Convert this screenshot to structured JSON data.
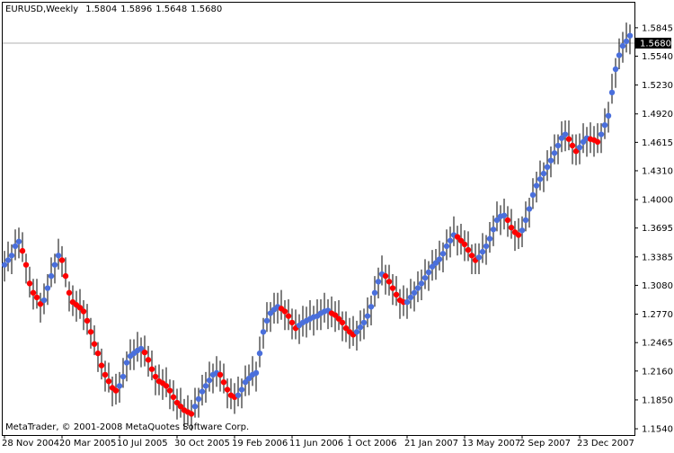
{
  "chart_data": {
    "type": "ohlc-dots",
    "title": "EURUSD,Weekly",
    "ohlc": [
      1.5804,
      1.5896,
      1.5648,
      {
        "value": 1.568,
        "label": "1.5680"
      }
    ],
    "footer": "MetaTrader, © 2001-2008 MetaQuotes Software Corp.",
    "last": {
      "value": 1.568,
      "label": "1.5680"
    },
    "up_color": "#4a6fdc",
    "down_color": "#ff0000",
    "bar_color": "#000000",
    "ylim": [
      1.1473,
      1.6114
    ],
    "yticks": [
      1.5845,
      {
        "value": 1.554,
        "label": "1.5540"
      },
      {
        "value": 1.523,
        "label": "1.5230"
      },
      {
        "value": 1.492,
        "label": "1.4920"
      },
      1.4615,
      {
        "value": 1.431,
        "label": "1.4310"
      },
      {
        "value": 1.4,
        "label": "1.4000"
      },
      1.3695,
      1.3385,
      {
        "value": 1.308,
        "label": "1.3080"
      },
      {
        "value": 1.277,
        "label": "1.2770"
      },
      1.2465,
      {
        "value": 1.216,
        "label": "1.2160"
      },
      {
        "value": 1.185,
        "label": "1.1850"
      },
      {
        "value": 1.154,
        "label": "1.1540"
      }
    ],
    "categories": [
      "28 Nov 2004",
      null,
      null,
      null,
      null,
      null,
      null,
      null,
      null,
      null,
      null,
      null,
      null,
      null,
      null,
      null,
      "20 Mar 2005",
      null,
      null,
      null,
      null,
      null,
      null,
      null,
      null,
      null,
      null,
      null,
      null,
      null,
      null,
      null,
      "10 Jul 2005",
      null,
      null,
      null,
      null,
      null,
      null,
      null,
      null,
      null,
      null,
      null,
      null,
      null,
      null,
      null,
      "30 Oct 2005",
      null,
      null,
      null,
      null,
      null,
      null,
      null,
      null,
      null,
      null,
      null,
      null,
      null,
      null,
      null,
      "19 Feb 2006",
      null,
      null,
      null,
      null,
      null,
      null,
      null,
      null,
      null,
      null,
      null,
      null,
      null,
      null,
      null,
      "11 Jun 2006",
      null,
      null,
      null,
      null,
      null,
      null,
      null,
      null,
      null,
      null,
      null,
      null,
      null,
      null,
      null,
      "1 Oct 2006",
      null,
      null,
      null,
      null,
      null,
      null,
      null,
      null,
      null,
      null,
      null,
      null,
      null,
      null,
      null,
      "21 Jan 2007",
      null,
      null,
      null,
      null,
      null,
      null,
      null,
      null,
      null,
      null,
      null,
      null,
      null,
      null,
      null,
      "13 May 2007",
      null,
      null,
      null,
      null,
      null,
      null,
      null,
      null,
      null,
      null,
      null,
      null,
      null,
      null,
      null,
      "2 Sep 2007",
      null,
      null,
      null,
      null,
      null,
      null,
      null,
      null,
      null,
      null,
      null,
      null,
      null,
      null,
      null,
      "23 Dec 2007",
      null,
      null,
      null,
      null,
      null,
      null,
      null,
      null,
      null,
      null,
      null,
      null,
      null,
      null
    ],
    "values": [
      1.33,
      1.335,
      1.34,
      1.35,
      1.355,
      1.345,
      1.33,
      1.31,
      1.3,
      1.295,
      1.288,
      1.292,
      1.305,
      1.318,
      1.33,
      1.34,
      1.335,
      1.318,
      1.3,
      1.29,
      1.287,
      1.284,
      1.28,
      1.27,
      1.258,
      1.245,
      1.235,
      1.222,
      1.212,
      1.205,
      1.198,
      1.195,
      1.2,
      1.21,
      1.225,
      1.232,
      1.235,
      1.238,
      1.24,
      1.236,
      1.228,
      1.218,
      1.21,
      1.205,
      1.203,
      1.2,
      1.195,
      1.188,
      1.182,
      1.178,
      1.174,
      1.172,
      1.17,
      1.178,
      1.186,
      1.194,
      1.2,
      1.206,
      1.212,
      1.214,
      1.212,
      1.204,
      1.196,
      1.19,
      1.188,
      1.19,
      1.196,
      1.204,
      1.208,
      1.212,
      1.214,
      1.235,
      1.258,
      1.27,
      1.278,
      1.282,
      1.285,
      1.283,
      1.28,
      1.275,
      1.268,
      1.262,
      1.265,
      1.268,
      1.27,
      1.272,
      1.274,
      1.275,
      1.278,
      1.28,
      1.281,
      1.278,
      1.276,
      1.272,
      1.268,
      1.262,
      1.258,
      1.255,
      1.258,
      1.263,
      1.268,
      1.275,
      1.285,
      1.3,
      1.312,
      1.32,
      1.318,
      1.312,
      1.305,
      1.298,
      1.292,
      1.29,
      1.29,
      1.295,
      1.3,
      1.305,
      1.31,
      1.316,
      1.322,
      1.328,
      1.332,
      1.336,
      1.342,
      1.35,
      1.356,
      1.362,
      1.36,
      1.356,
      1.352,
      1.346,
      1.34,
      1.335,
      1.338,
      1.344,
      1.35,
      1.358,
      1.368,
      1.378,
      1.382,
      1.383,
      1.378,
      1.37,
      1.365,
      1.362,
      1.367,
      1.378,
      1.39,
      1.405,
      1.415,
      1.422,
      1.428,
      1.435,
      1.442,
      1.45,
      1.458,
      1.466,
      1.47,
      1.465,
      1.458,
      1.452,
      1.456,
      1.462,
      1.466,
      1.465,
      1.464,
      1.462,
      1.47,
      1.48,
      1.49,
      1.515,
      1.54,
      1.555,
      1.565,
      1.57,
      1.576
    ],
    "high": [
      1.345,
      1.355,
      1.352,
      1.368,
      1.37,
      1.365,
      1.342,
      1.328,
      1.315,
      1.315,
      1.3,
      1.31,
      1.32,
      1.338,
      1.342,
      1.358,
      1.35,
      1.338,
      1.312,
      1.308,
      1.302,
      1.304,
      1.292,
      1.288,
      1.273,
      1.265,
      1.247,
      1.24,
      1.227,
      1.225,
      1.21,
      1.213,
      1.215,
      1.23,
      1.237,
      1.25,
      1.25,
      1.258,
      1.252,
      1.254,
      1.243,
      1.238,
      1.222,
      1.223,
      1.218,
      1.22,
      1.207,
      1.206,
      1.197,
      1.198,
      1.186,
      1.19,
      1.185,
      1.198,
      1.198,
      1.212,
      1.215,
      1.226,
      1.224,
      1.232,
      1.227,
      1.224,
      1.208,
      1.208,
      1.203,
      1.21,
      1.208,
      1.222,
      1.223,
      1.232,
      1.226,
      1.253,
      1.273,
      1.29,
      1.29,
      1.3,
      1.3,
      1.303,
      1.292,
      1.293,
      1.283,
      1.282,
      1.277,
      1.286,
      1.285,
      1.292,
      1.286,
      1.293,
      1.293,
      1.3,
      1.293,
      1.296,
      1.291,
      1.292,
      1.28,
      1.28,
      1.273,
      1.275,
      1.27,
      1.281,
      1.283,
      1.295,
      1.297,
      1.318,
      1.327,
      1.34,
      1.33,
      1.33,
      1.32,
      1.318,
      1.304,
      1.308,
      1.305,
      1.315,
      1.312,
      1.323,
      1.325,
      1.336,
      1.334,
      1.346,
      1.347,
      1.356,
      1.354,
      1.368,
      1.371,
      1.382,
      1.372,
      1.374,
      1.367,
      1.366,
      1.352,
      1.353,
      1.353,
      1.364,
      1.362,
      1.376,
      1.383,
      1.398,
      1.394,
      1.401,
      1.393,
      1.39,
      1.377,
      1.38,
      1.382,
      1.398,
      1.402,
      1.423,
      1.43,
      1.442,
      1.44,
      1.453,
      1.457,
      1.47,
      1.47,
      1.484,
      1.485,
      1.485,
      1.47,
      1.47,
      1.471,
      1.482,
      1.478,
      1.483,
      1.479,
      1.482,
      1.482,
      1.498,
      1.505,
      1.535,
      1.552,
      1.573,
      1.58,
      1.59,
      1.588
    ],
    "low": [
      1.312,
      1.323,
      1.32,
      1.335,
      1.337,
      1.333,
      1.31,
      1.295,
      1.282,
      1.283,
      1.268,
      1.277,
      1.287,
      1.306,
      1.31,
      1.325,
      1.317,
      1.306,
      1.28,
      1.275,
      1.269,
      1.272,
      1.26,
      1.255,
      1.24,
      1.233,
      1.215,
      1.207,
      1.194,
      1.193,
      1.178,
      1.18,
      1.182,
      1.198,
      1.205,
      1.217,
      1.217,
      1.226,
      1.22,
      1.221,
      1.21,
      1.206,
      1.19,
      1.19,
      1.185,
      1.188,
      1.175,
      1.173,
      1.164,
      1.166,
      1.154,
      1.157,
      1.152,
      1.166,
      1.166,
      1.179,
      1.182,
      1.194,
      1.192,
      1.199,
      1.194,
      1.192,
      1.176,
      1.175,
      1.17,
      1.178,
      1.176,
      1.189,
      1.19,
      1.2,
      1.194,
      1.22,
      1.24,
      1.258,
      1.258,
      1.267,
      1.267,
      1.271,
      1.26,
      1.26,
      1.25,
      1.25,
      1.245,
      1.253,
      1.252,
      1.26,
      1.254,
      1.26,
      1.26,
      1.268,
      1.261,
      1.263,
      1.258,
      1.26,
      1.248,
      1.247,
      1.24,
      1.243,
      1.238,
      1.248,
      1.25,
      1.263,
      1.265,
      1.285,
      1.294,
      1.308,
      1.298,
      1.297,
      1.287,
      1.286,
      1.272,
      1.275,
      1.272,
      1.283,
      1.28,
      1.29,
      1.292,
      1.304,
      1.302,
      1.313,
      1.314,
      1.324,
      1.322,
      1.335,
      1.338,
      1.35,
      1.34,
      1.341,
      1.334,
      1.334,
      1.32,
      1.32,
      1.32,
      1.332,
      1.33,
      1.343,
      1.35,
      1.366,
      1.362,
      1.368,
      1.36,
      1.358,
      1.345,
      1.347,
      1.349,
      1.366,
      1.37,
      1.39,
      1.397,
      1.41,
      1.408,
      1.42,
      1.424,
      1.438,
      1.438,
      1.451,
      1.452,
      1.453,
      1.438,
      1.437,
      1.438,
      1.45,
      1.446,
      1.45,
      1.446,
      1.45,
      1.45,
      1.465,
      1.472,
      1.503,
      1.52,
      1.54,
      1.547,
      1.558,
      1.556
    ]
  }
}
